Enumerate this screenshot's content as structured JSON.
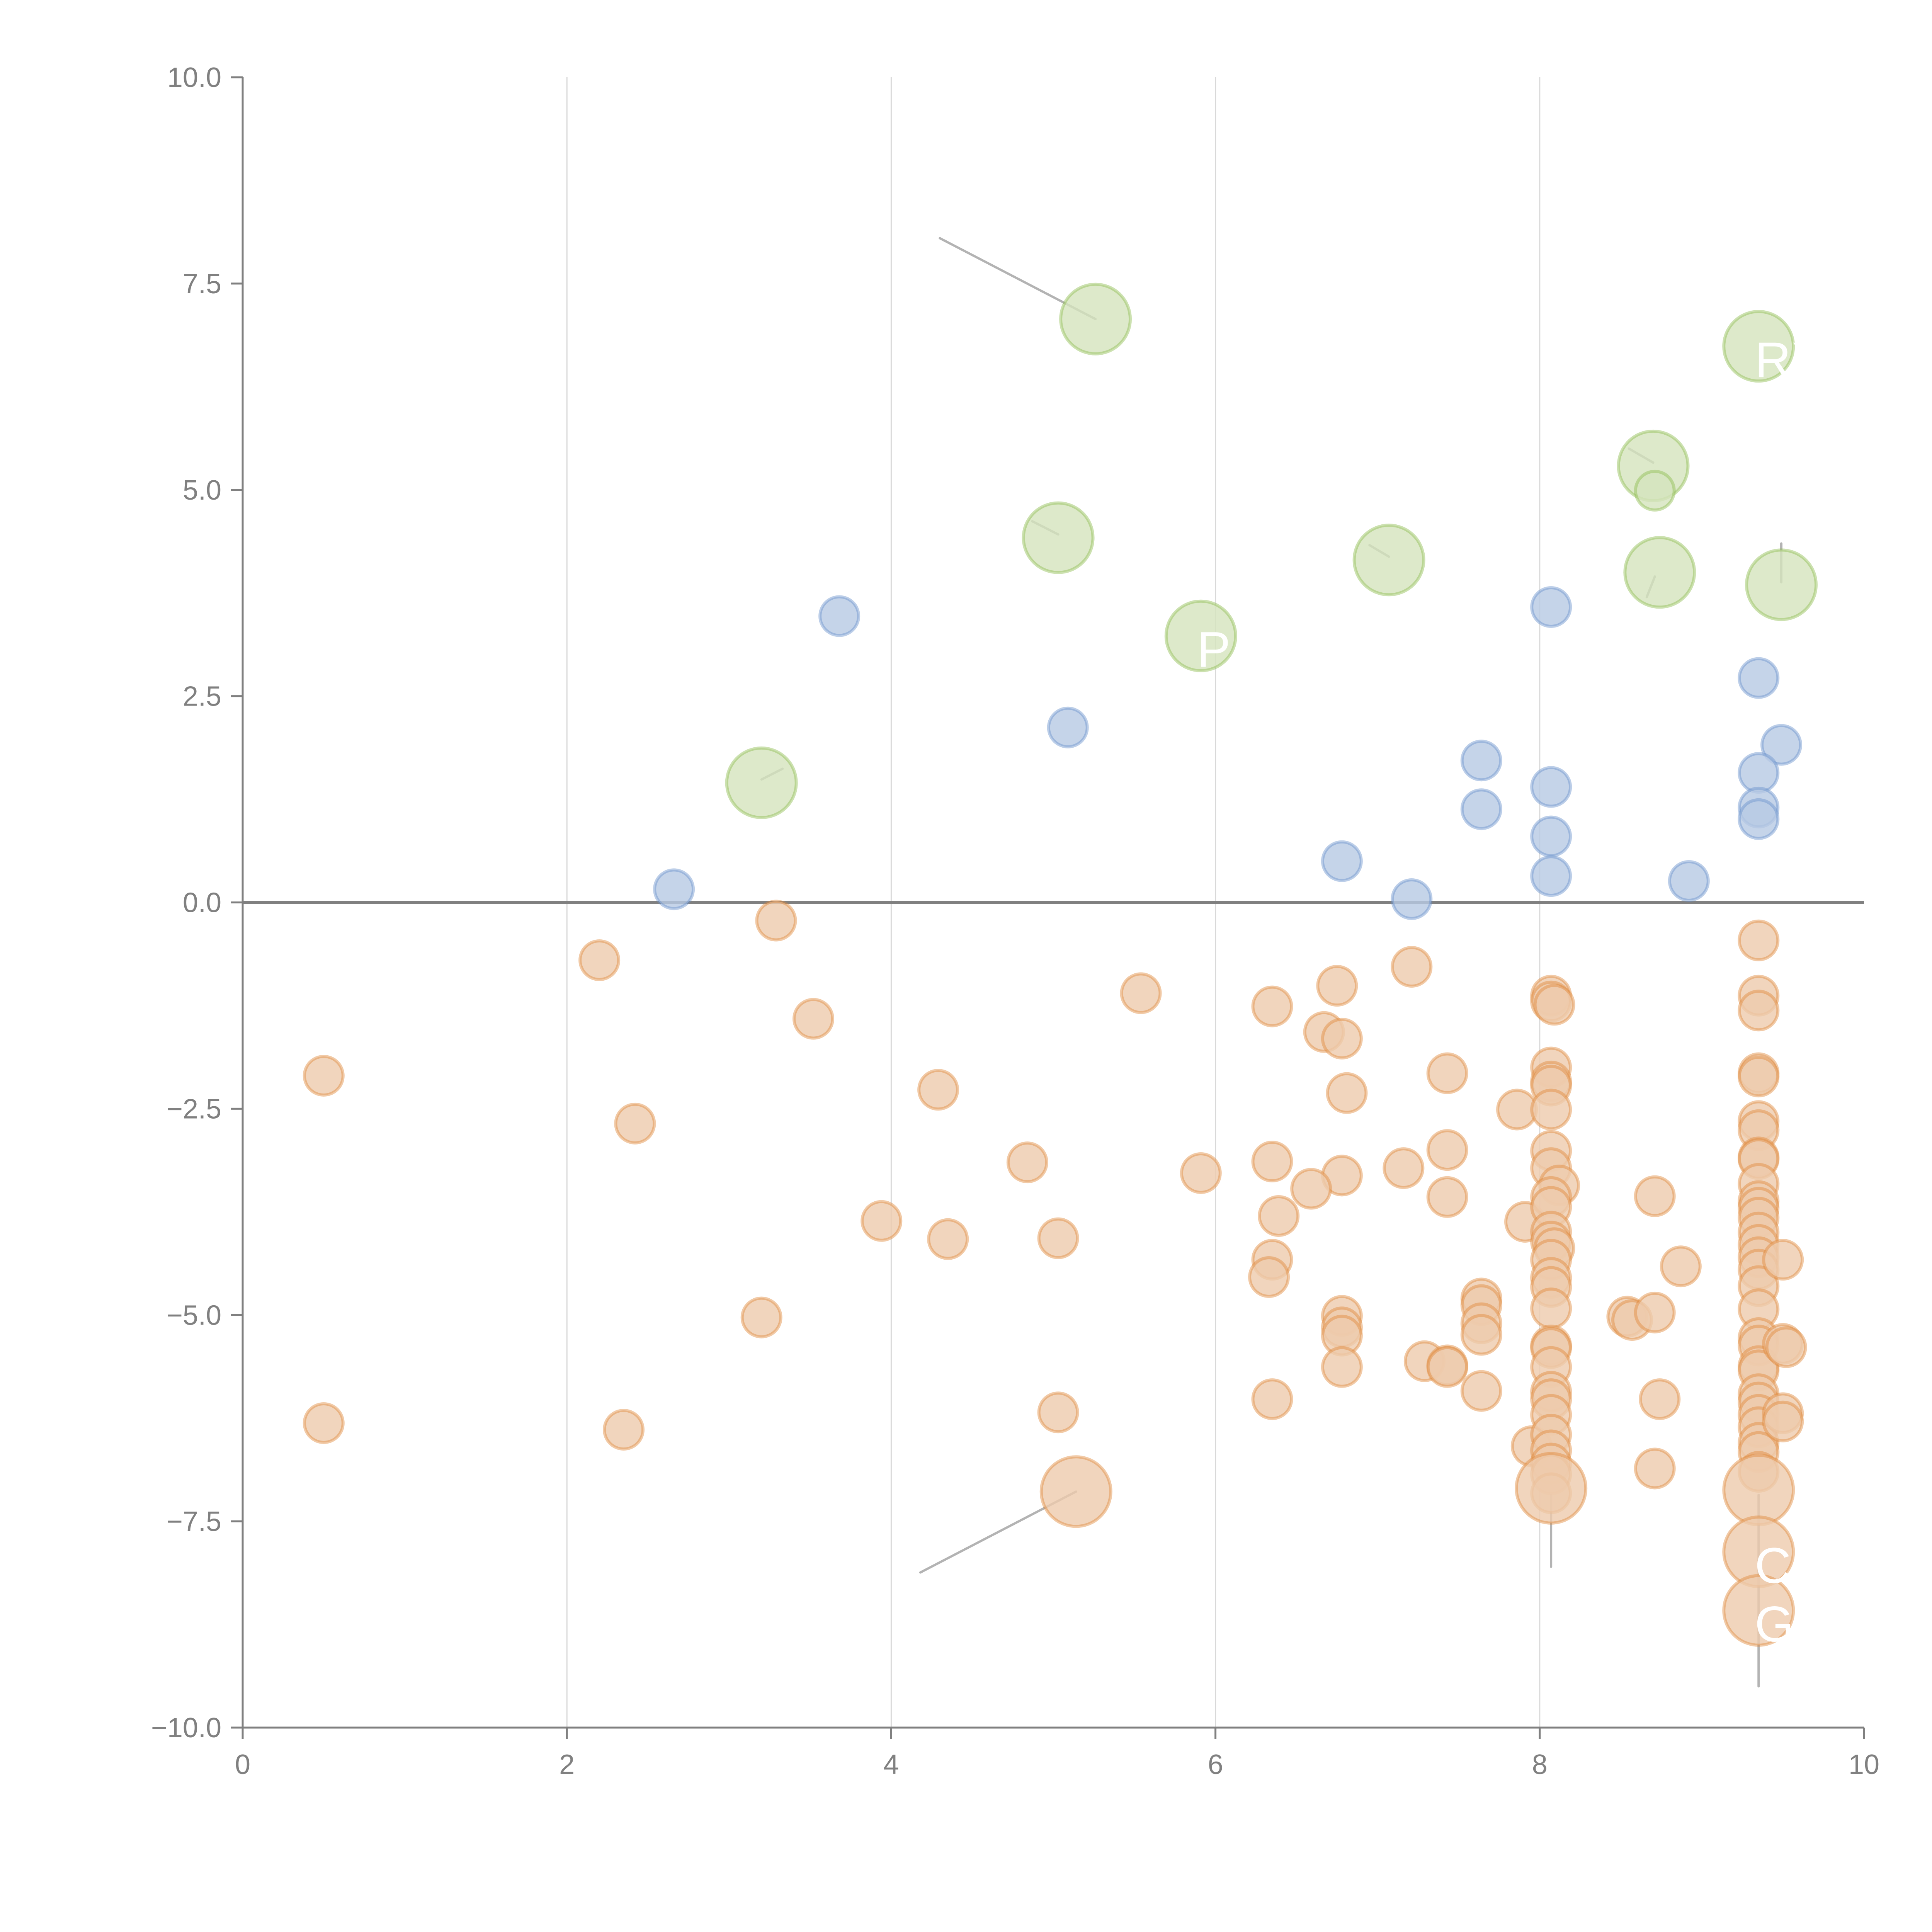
{
  "chart_data": {
    "type": "scatter",
    "title": "",
    "xlabel": "",
    "ylabel": "",
    "xlim": [
      0,
      10
    ],
    "ylim": [
      -10,
      10
    ],
    "x_ticks": [
      "0",
      "2",
      "4",
      "6",
      "8",
      "10"
    ],
    "y_ticks": [
      "−10.0",
      "−7.5",
      "−5.0",
      "−2.5",
      "0.0",
      "2.5",
      "5.0",
      "7.5",
      "10.0"
    ],
    "grid": "vertical",
    "reference_line_y": 0,
    "legend": "none",
    "series": [
      {
        "name": "green",
        "color": "#8fbc4f",
        "fill": "#d5e3bd",
        "size": "large",
        "points": [
          {
            "x": 5.26,
            "y": 7.07,
            "label": ""
          },
          {
            "x": 9.35,
            "y": 6.74,
            "label": "RX"
          },
          {
            "x": 8.7,
            "y": 5.29,
            "label": ""
          },
          {
            "x": 8.71,
            "y": 4.99,
            "label": "",
            "small": true
          },
          {
            "x": 5.03,
            "y": 4.42,
            "label": ""
          },
          {
            "x": 7.07,
            "y": 4.15,
            "label": ""
          },
          {
            "x": 8.74,
            "y": 4.0,
            "label": ""
          },
          {
            "x": 9.49,
            "y": 3.85,
            "label": ""
          },
          {
            "x": 5.91,
            "y": 3.23,
            "label": "P"
          },
          {
            "x": 3.2,
            "y": 1.45,
            "label": ""
          }
        ]
      },
      {
        "name": "blue",
        "color": "#6a93cc",
        "fill": "#b7c9e3",
        "size": "small",
        "points": [
          {
            "x": 3.68,
            "y": 3.47
          },
          {
            "x": 5.09,
            "y": 2.12
          },
          {
            "x": 2.66,
            "y": 0.16
          },
          {
            "x": 8.07,
            "y": 3.58
          },
          {
            "x": 9.35,
            "y": 2.72
          },
          {
            "x": 9.49,
            "y": 1.91
          },
          {
            "x": 7.64,
            "y": 1.72
          },
          {
            "x": 8.07,
            "y": 1.4
          },
          {
            "x": 9.35,
            "y": 1.57
          },
          {
            "x": 7.64,
            "y": 1.13
          },
          {
            "x": 9.35,
            "y": 1.15
          },
          {
            "x": 9.35,
            "y": 1.01
          },
          {
            "x": 8.07,
            "y": 0.8
          },
          {
            "x": 6.78,
            "y": 0.5
          },
          {
            "x": 8.07,
            "y": 0.32
          },
          {
            "x": 8.92,
            "y": 0.26
          },
          {
            "x": 7.21,
            "y": 0.04
          }
        ]
      },
      {
        "name": "orange",
        "color": "#e08a3c",
        "fill": "#eecbac",
        "size": "small",
        "points": [
          {
            "x": 3.29,
            "y": -0.22
          },
          {
            "x": 2.2,
            "y": -0.7
          },
          {
            "x": 3.52,
            "y": -1.41
          },
          {
            "x": 0.5,
            "y": -2.1
          },
          {
            "x": 2.42,
            "y": -2.68
          },
          {
            "x": 5.54,
            "y": -1.1
          },
          {
            "x": 4.29,
            "y": -2.27
          },
          {
            "x": 4.84,
            "y": -3.15
          },
          {
            "x": 3.94,
            "y": -3.86
          },
          {
            "x": 4.35,
            "y": -4.08
          },
          {
            "x": 5.03,
            "y": -4.07
          },
          {
            "x": 3.2,
            "y": -5.03
          },
          {
            "x": 0.5,
            "y": -6.31
          },
          {
            "x": 2.35,
            "y": -6.39
          },
          {
            "x": 5.03,
            "y": -6.18
          },
          {
            "x": 5.91,
            "y": -3.28
          },
          {
            "x": 6.35,
            "y": -1.26
          },
          {
            "x": 6.75,
            "y": -1.01
          },
          {
            "x": 6.67,
            "y": -1.57
          },
          {
            "x": 6.78,
            "y": -1.65
          },
          {
            "x": 6.81,
            "y": -2.31
          },
          {
            "x": 6.35,
            "y": -3.14
          },
          {
            "x": 6.78,
            "y": -3.31
          },
          {
            "x": 6.59,
            "y": -3.47
          },
          {
            "x": 6.39,
            "y": -3.8
          },
          {
            "x": 6.35,
            "y": -4.33
          },
          {
            "x": 6.33,
            "y": -4.54
          },
          {
            "x": 6.78,
            "y": -5.01
          },
          {
            "x": 6.78,
            "y": -5.15
          },
          {
            "x": 6.78,
            "y": -5.25
          },
          {
            "x": 6.78,
            "y": -5.63
          },
          {
            "x": 6.35,
            "y": -6.02
          },
          {
            "x": 7.21,
            "y": -0.78
          },
          {
            "x": 7.43,
            "y": -2.07
          },
          {
            "x": 7.16,
            "y": -3.22
          },
          {
            "x": 7.43,
            "y": -3.0
          },
          {
            "x": 7.43,
            "y": -3.57
          },
          {
            "x": 7.29,
            "y": -5.56
          },
          {
            "x": 7.43,
            "y": -5.61
          },
          {
            "x": 7.43,
            "y": -5.63
          },
          {
            "x": 7.64,
            "y": -4.8
          },
          {
            "x": 7.64,
            "y": -4.88
          },
          {
            "x": 7.64,
            "y": -5.1
          },
          {
            "x": 7.64,
            "y": -5.24
          },
          {
            "x": 7.64,
            "y": -5.92
          },
          {
            "x": 7.86,
            "y": -2.51
          },
          {
            "x": 7.91,
            "y": -3.87
          },
          {
            "x": 7.95,
            "y": -6.59
          },
          {
            "x": 8.07,
            "y": -1.13
          },
          {
            "x": 8.07,
            "y": -1.2
          },
          {
            "x": 8.09,
            "y": -1.24
          },
          {
            "x": 8.07,
            "y": -2.0
          },
          {
            "x": 8.07,
            "y": -2.17
          },
          {
            "x": 8.07,
            "y": -2.22
          },
          {
            "x": 8.07,
            "y": -2.51
          },
          {
            "x": 8.07,
            "y": -3.01
          },
          {
            "x": 8.07,
            "y": -3.22
          },
          {
            "x": 8.12,
            "y": -3.43
          },
          {
            "x": 8.07,
            "y": -3.57
          },
          {
            "x": 8.07,
            "y": -3.69
          },
          {
            "x": 8.07,
            "y": -3.99
          },
          {
            "x": 8.07,
            "y": -4.11
          },
          {
            "x": 8.09,
            "y": -4.19
          },
          {
            "x": 8.07,
            "y": -4.33
          },
          {
            "x": 8.07,
            "y": -4.55
          },
          {
            "x": 8.07,
            "y": -4.66
          },
          {
            "x": 8.07,
            "y": -4.92
          },
          {
            "x": 8.07,
            "y": -5.37
          },
          {
            "x": 8.07,
            "y": -5.4
          },
          {
            "x": 8.07,
            "y": -5.63
          },
          {
            "x": 8.07,
            "y": -5.93
          },
          {
            "x": 8.07,
            "y": -6.02
          },
          {
            "x": 8.07,
            "y": -6.21
          },
          {
            "x": 8.07,
            "y": -6.45
          },
          {
            "x": 8.07,
            "y": -6.64
          },
          {
            "x": 8.07,
            "y": -6.8
          },
          {
            "x": 8.07,
            "y": -6.93
          },
          {
            "x": 8.07,
            "y": -7.16
          },
          {
            "x": 8.54,
            "y": -5.02
          },
          {
            "x": 8.57,
            "y": -5.06
          },
          {
            "x": 8.71,
            "y": -3.56
          },
          {
            "x": 8.71,
            "y": -4.97
          },
          {
            "x": 8.74,
            "y": -6.02
          },
          {
            "x": 8.71,
            "y": -6.86
          },
          {
            "x": 8.87,
            "y": -4.41
          },
          {
            "x": 9.35,
            "y": -0.46
          },
          {
            "x": 9.35,
            "y": -1.13
          },
          {
            "x": 9.35,
            "y": -1.31
          },
          {
            "x": 9.35,
            "y": -2.07
          },
          {
            "x": 9.35,
            "y": -2.11
          },
          {
            "x": 9.35,
            "y": -2.65
          },
          {
            "x": 9.35,
            "y": -2.76
          },
          {
            "x": 9.35,
            "y": -3.09
          },
          {
            "x": 9.35,
            "y": -3.11
          },
          {
            "x": 9.35,
            "y": -3.41
          },
          {
            "x": 9.35,
            "y": -3.62
          },
          {
            "x": 9.35,
            "y": -3.7
          },
          {
            "x": 9.35,
            "y": -3.82
          },
          {
            "x": 9.35,
            "y": -4.0
          },
          {
            "x": 9.35,
            "y": -4.15
          },
          {
            "x": 9.35,
            "y": -4.3
          },
          {
            "x": 9.35,
            "y": -4.45
          },
          {
            "x": 9.35,
            "y": -4.65
          },
          {
            "x": 9.35,
            "y": -4.93
          },
          {
            "x": 9.35,
            "y": -5.28
          },
          {
            "x": 9.35,
            "y": -5.37
          },
          {
            "x": 9.35,
            "y": -5.62
          },
          {
            "x": 9.35,
            "y": -5.67
          },
          {
            "x": 9.35,
            "y": -5.96
          },
          {
            "x": 9.35,
            "y": -6.06
          },
          {
            "x": 9.35,
            "y": -6.21
          },
          {
            "x": 9.35,
            "y": -6.36
          },
          {
            "x": 9.35,
            "y": -6.55
          },
          {
            "x": 9.35,
            "y": -6.66
          },
          {
            "x": 9.35,
            "y": -6.9
          },
          {
            "x": 9.5,
            "y": -4.33
          },
          {
            "x": 9.5,
            "y": -5.35
          },
          {
            "x": 9.52,
            "y": -5.39
          },
          {
            "x": 9.5,
            "y": -6.19
          },
          {
            "x": 9.5,
            "y": -6.29
          }
        ]
      },
      {
        "name": "orange-large",
        "color": "#e08a3c",
        "fill": "#eecbac",
        "size": "large",
        "points": [
          {
            "x": 5.14,
            "y": -7.14,
            "label": ""
          },
          {
            "x": 8.07,
            "y": -7.1,
            "label": ""
          },
          {
            "x": 9.35,
            "y": -7.12,
            "label": ""
          },
          {
            "x": 9.35,
            "y": -7.87,
            "label": "C"
          },
          {
            "x": 9.35,
            "y": -8.58,
            "label": "G"
          }
        ]
      }
    ],
    "leader_lines": [
      {
        "from": [
          5.26,
          7.07
        ],
        "to": [
          4.3,
          8.05
        ]
      },
      {
        "from": [
          5.14,
          -7.14
        ],
        "to": [
          4.18,
          -8.12
        ]
      },
      {
        "from": [
          8.07,
          -7.18
        ],
        "to": [
          8.07,
          -8.05
        ]
      },
      {
        "from": [
          9.35,
          -7.18
        ],
        "to": [
          9.35,
          -9.5
        ]
      },
      {
        "from": [
          8.71,
          3.95
        ],
        "to": [
          8.66,
          3.7
        ]
      },
      {
        "from": [
          9.49,
          3.88
        ],
        "to": [
          9.49,
          4.35
        ]
      },
      {
        "from": [
          3.2,
          1.49
        ],
        "to": [
          3.33,
          1.62
        ]
      },
      {
        "from": [
          5.03,
          4.46
        ],
        "to": [
          4.87,
          4.62
        ]
      },
      {
        "from": [
          7.07,
          4.19
        ],
        "to": [
          6.95,
          4.33
        ]
      },
      {
        "from": [
          8.7,
          5.33
        ],
        "to": [
          8.55,
          5.5
        ]
      }
    ]
  }
}
